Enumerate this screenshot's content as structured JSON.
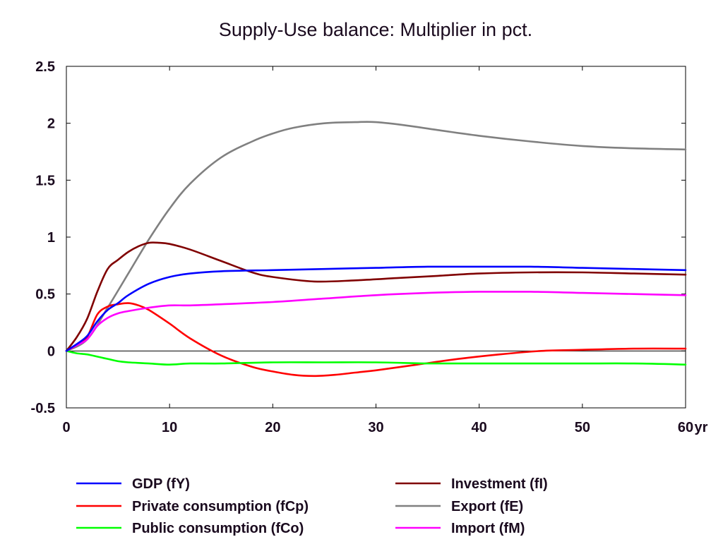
{
  "chart_data": {
    "type": "line",
    "title": "Supply-Use balance: Multiplier in pct.",
    "xlabel": "",
    "ylabel": "",
    "x_unit_label": "yr",
    "xlim": [
      0,
      60
    ],
    "ylim": [
      -0.5,
      2.5
    ],
    "x_ticks": [
      {
        "value": 0,
        "label": "0"
      },
      {
        "value": 10,
        "label": "10"
      },
      {
        "value": 20,
        "label": "20"
      },
      {
        "value": 30,
        "label": "30"
      },
      {
        "value": 40,
        "label": "40"
      },
      {
        "value": 50,
        "label": "50"
      },
      {
        "value": 60,
        "label": "60"
      }
    ],
    "y_ticks": [
      {
        "value": 2.5,
        "label": "2.5"
      },
      {
        "value": 2,
        "label": "2"
      },
      {
        "value": 1.5,
        "label": "1.5"
      },
      {
        "value": 1,
        "label": "1"
      },
      {
        "value": 0.5,
        "label": "0.5"
      },
      {
        "value": 0,
        "label": "0"
      },
      {
        "value": -0.5,
        "label": "-0.5"
      }
    ],
    "grid": false,
    "zero_line": true,
    "legend_position": "bottom",
    "series": [
      {
        "name": "GDP (fY)",
        "color": "#0000ff",
        "x": [
          0,
          1,
          2,
          3,
          4,
          5,
          6,
          8,
          10,
          12,
          15,
          20,
          25,
          30,
          35,
          40,
          45,
          50,
          55,
          60
        ],
        "y": [
          0,
          0.06,
          0.13,
          0.26,
          0.36,
          0.42,
          0.49,
          0.59,
          0.65,
          0.68,
          0.7,
          0.71,
          0.72,
          0.73,
          0.74,
          0.74,
          0.74,
          0.73,
          0.72,
          0.71
        ]
      },
      {
        "name": "Investment (fI)",
        "color": "#800000",
        "x": [
          0,
          1,
          2,
          3,
          4,
          5,
          6,
          7,
          8,
          9,
          10,
          12,
          15,
          18,
          20,
          24,
          28,
          32,
          36,
          40,
          45,
          50,
          55,
          60
        ],
        "y": [
          0,
          0.12,
          0.28,
          0.52,
          0.72,
          0.8,
          0.87,
          0.92,
          0.95,
          0.95,
          0.94,
          0.89,
          0.79,
          0.69,
          0.65,
          0.61,
          0.62,
          0.64,
          0.66,
          0.68,
          0.69,
          0.69,
          0.68,
          0.67
        ]
      },
      {
        "name": "Private consumption (fCp)",
        "color": "#ff0000",
        "x": [
          0,
          1,
          2,
          3,
          4,
          5,
          6,
          7,
          8,
          10,
          12,
          15,
          18,
          20,
          22,
          24,
          26,
          28,
          30,
          34,
          38,
          42,
          46,
          50,
          55,
          60
        ],
        "y": [
          0,
          0.05,
          0.12,
          0.32,
          0.39,
          0.41,
          0.42,
          0.4,
          0.36,
          0.24,
          0.11,
          -0.04,
          -0.14,
          -0.18,
          -0.21,
          -0.22,
          -0.21,
          -0.19,
          -0.17,
          -0.12,
          -0.07,
          -0.03,
          0.0,
          0.01,
          0.02,
          0.02
        ]
      },
      {
        "name": "Export (fE)",
        "color": "#808080",
        "x": [
          0,
          2,
          4,
          6,
          8,
          10,
          12,
          15,
          18,
          20,
          22,
          25,
          28,
          30,
          33,
          36,
          40,
          45,
          50,
          55,
          60
        ],
        "y": [
          0,
          0.1,
          0.38,
          0.68,
          0.98,
          1.25,
          1.47,
          1.7,
          1.84,
          1.91,
          1.96,
          2.0,
          2.01,
          2.01,
          1.98,
          1.94,
          1.89,
          1.84,
          1.8,
          1.78,
          1.77
        ]
      },
      {
        "name": "Public consumption (fCo)",
        "color": "#00ff00",
        "x": [
          0,
          1,
          2,
          3,
          4,
          5,
          6,
          8,
          10,
          12,
          15,
          20,
          25,
          30,
          35,
          40,
          45,
          50,
          55,
          60
        ],
        "y": [
          0,
          -0.02,
          -0.03,
          -0.05,
          -0.07,
          -0.09,
          -0.1,
          -0.11,
          -0.12,
          -0.11,
          -0.11,
          -0.1,
          -0.1,
          -0.1,
          -0.11,
          -0.11,
          -0.11,
          -0.11,
          -0.11,
          -0.12
        ]
      },
      {
        "name": "Import (fM)",
        "color": "#ff00ff",
        "x": [
          0,
          1,
          2,
          3,
          4,
          5,
          6,
          8,
          10,
          12,
          15,
          20,
          25,
          30,
          35,
          40,
          45,
          50,
          55,
          60
        ],
        "y": [
          0,
          0.05,
          0.1,
          0.22,
          0.29,
          0.33,
          0.35,
          0.38,
          0.4,
          0.4,
          0.41,
          0.43,
          0.46,
          0.49,
          0.51,
          0.52,
          0.52,
          0.51,
          0.5,
          0.49
        ]
      }
    ]
  }
}
